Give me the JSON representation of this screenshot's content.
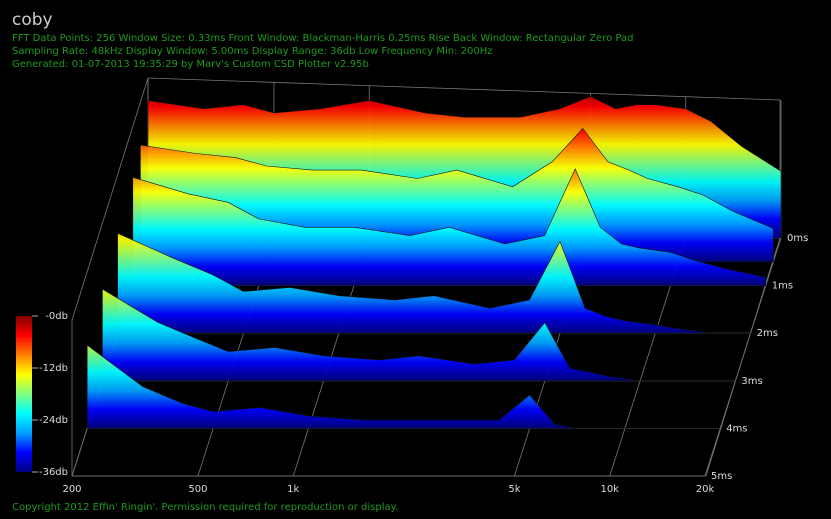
{
  "chart_data": {
    "type": "waterfall",
    "title": "coby",
    "info_lines": [
      "FFT Data Points: 256   Window Size: 0.33ms    Front Window: Blackman-Harris 0.25ms Rise    Back Window: Rectangular Zero Pad",
      "Sampling Rate: 48kHz   Display Window: 5.00ms    Display Range: 36db   Low Frequency Min: 200Hz",
      "Generated: 01-07-2013 19:35:29 by Marv's Custom CSD Plotter v2.95b"
    ],
    "footer": "Copyright 2012 Effin' Ringin'. Permission required for reproduction or display.",
    "x": [
      200,
      300,
      400,
      500,
      700,
      1000,
      1500,
      2000,
      3000,
      4000,
      5000,
      6000,
      7000,
      8000,
      10000,
      12000,
      15000,
      20000
    ],
    "slices": [
      {
        "time": 0,
        "values": [
          -3,
          -5,
          -4,
          -6,
          -5,
          -3,
          -6,
          -7,
          -7,
          -5,
          -2,
          -5,
          -4,
          -4,
          -5,
          -8,
          -14,
          -20
        ]
      },
      {
        "time": 0.5,
        "values": [
          -8,
          -10,
          -11,
          -13,
          -14,
          -14,
          -16,
          -14,
          -18,
          -12,
          -4,
          -12,
          -14,
          -16,
          -18,
          -20,
          -24,
          -28
        ]
      },
      {
        "time": 1,
        "values": [
          -10,
          -14,
          -16,
          -20,
          -22,
          -22,
          -24,
          -22,
          -26,
          -24,
          -8,
          -22,
          -26,
          -27,
          -28,
          -30,
          -32,
          -34
        ]
      },
      {
        "time": 2,
        "values": [
          -12,
          -18,
          -22,
          -26,
          -25,
          -27,
          -28,
          -27,
          -30,
          -28,
          -14,
          -30,
          -32,
          -33,
          -34,
          -35,
          -36,
          -36
        ]
      },
      {
        "time": 3,
        "values": [
          -14,
          -22,
          -26,
          -29,
          -28,
          -30,
          -31,
          -30,
          -32,
          -31,
          -22,
          -33,
          -34,
          -35,
          -36,
          -36,
          -36,
          -36
        ]
      },
      {
        "time": 4,
        "values": [
          -16,
          -26,
          -30,
          -32,
          -31,
          -33,
          -34,
          -34,
          -34,
          -34,
          -28,
          -35,
          -36,
          -36,
          -36,
          -36,
          -36,
          -36
        ]
      }
    ],
    "xlim": [
      200,
      20000
    ],
    "log_x": true,
    "xticks": [
      200,
      500,
      {
        "value": 1000,
        "label": "1k"
      },
      {
        "value": 5000,
        "label": "5k"
      },
      {
        "value": 10000,
        "label": "10k"
      },
      {
        "value": 20000,
        "label": "20k"
      }
    ],
    "zlim": [
      0,
      5
    ],
    "zticks": [
      {
        "value": 0,
        "label": "0ms"
      },
      {
        "value": 1,
        "label": "1ms"
      },
      {
        "value": 2,
        "label": "2ms"
      },
      {
        "value": 3,
        "label": "3ms"
      },
      {
        "value": 4,
        "label": "4ms"
      },
      {
        "value": 5,
        "label": "5ms"
      }
    ],
    "ylim": [
      -36,
      0
    ],
    "colorbar_ticks": [
      {
        "value": 0,
        "label": "-0db"
      },
      {
        "value": -12,
        "label": "-12db"
      },
      {
        "value": -24,
        "label": "-24db"
      },
      {
        "value": -36,
        "label": "-36db"
      }
    ],
    "colormap": [
      "#00007f",
      "#0000ff",
      "#00a0ff",
      "#00ffff",
      "#80ff80",
      "#ffff00",
      "#ff8000",
      "#ff0000",
      "#800000"
    ],
    "grid": true
  }
}
